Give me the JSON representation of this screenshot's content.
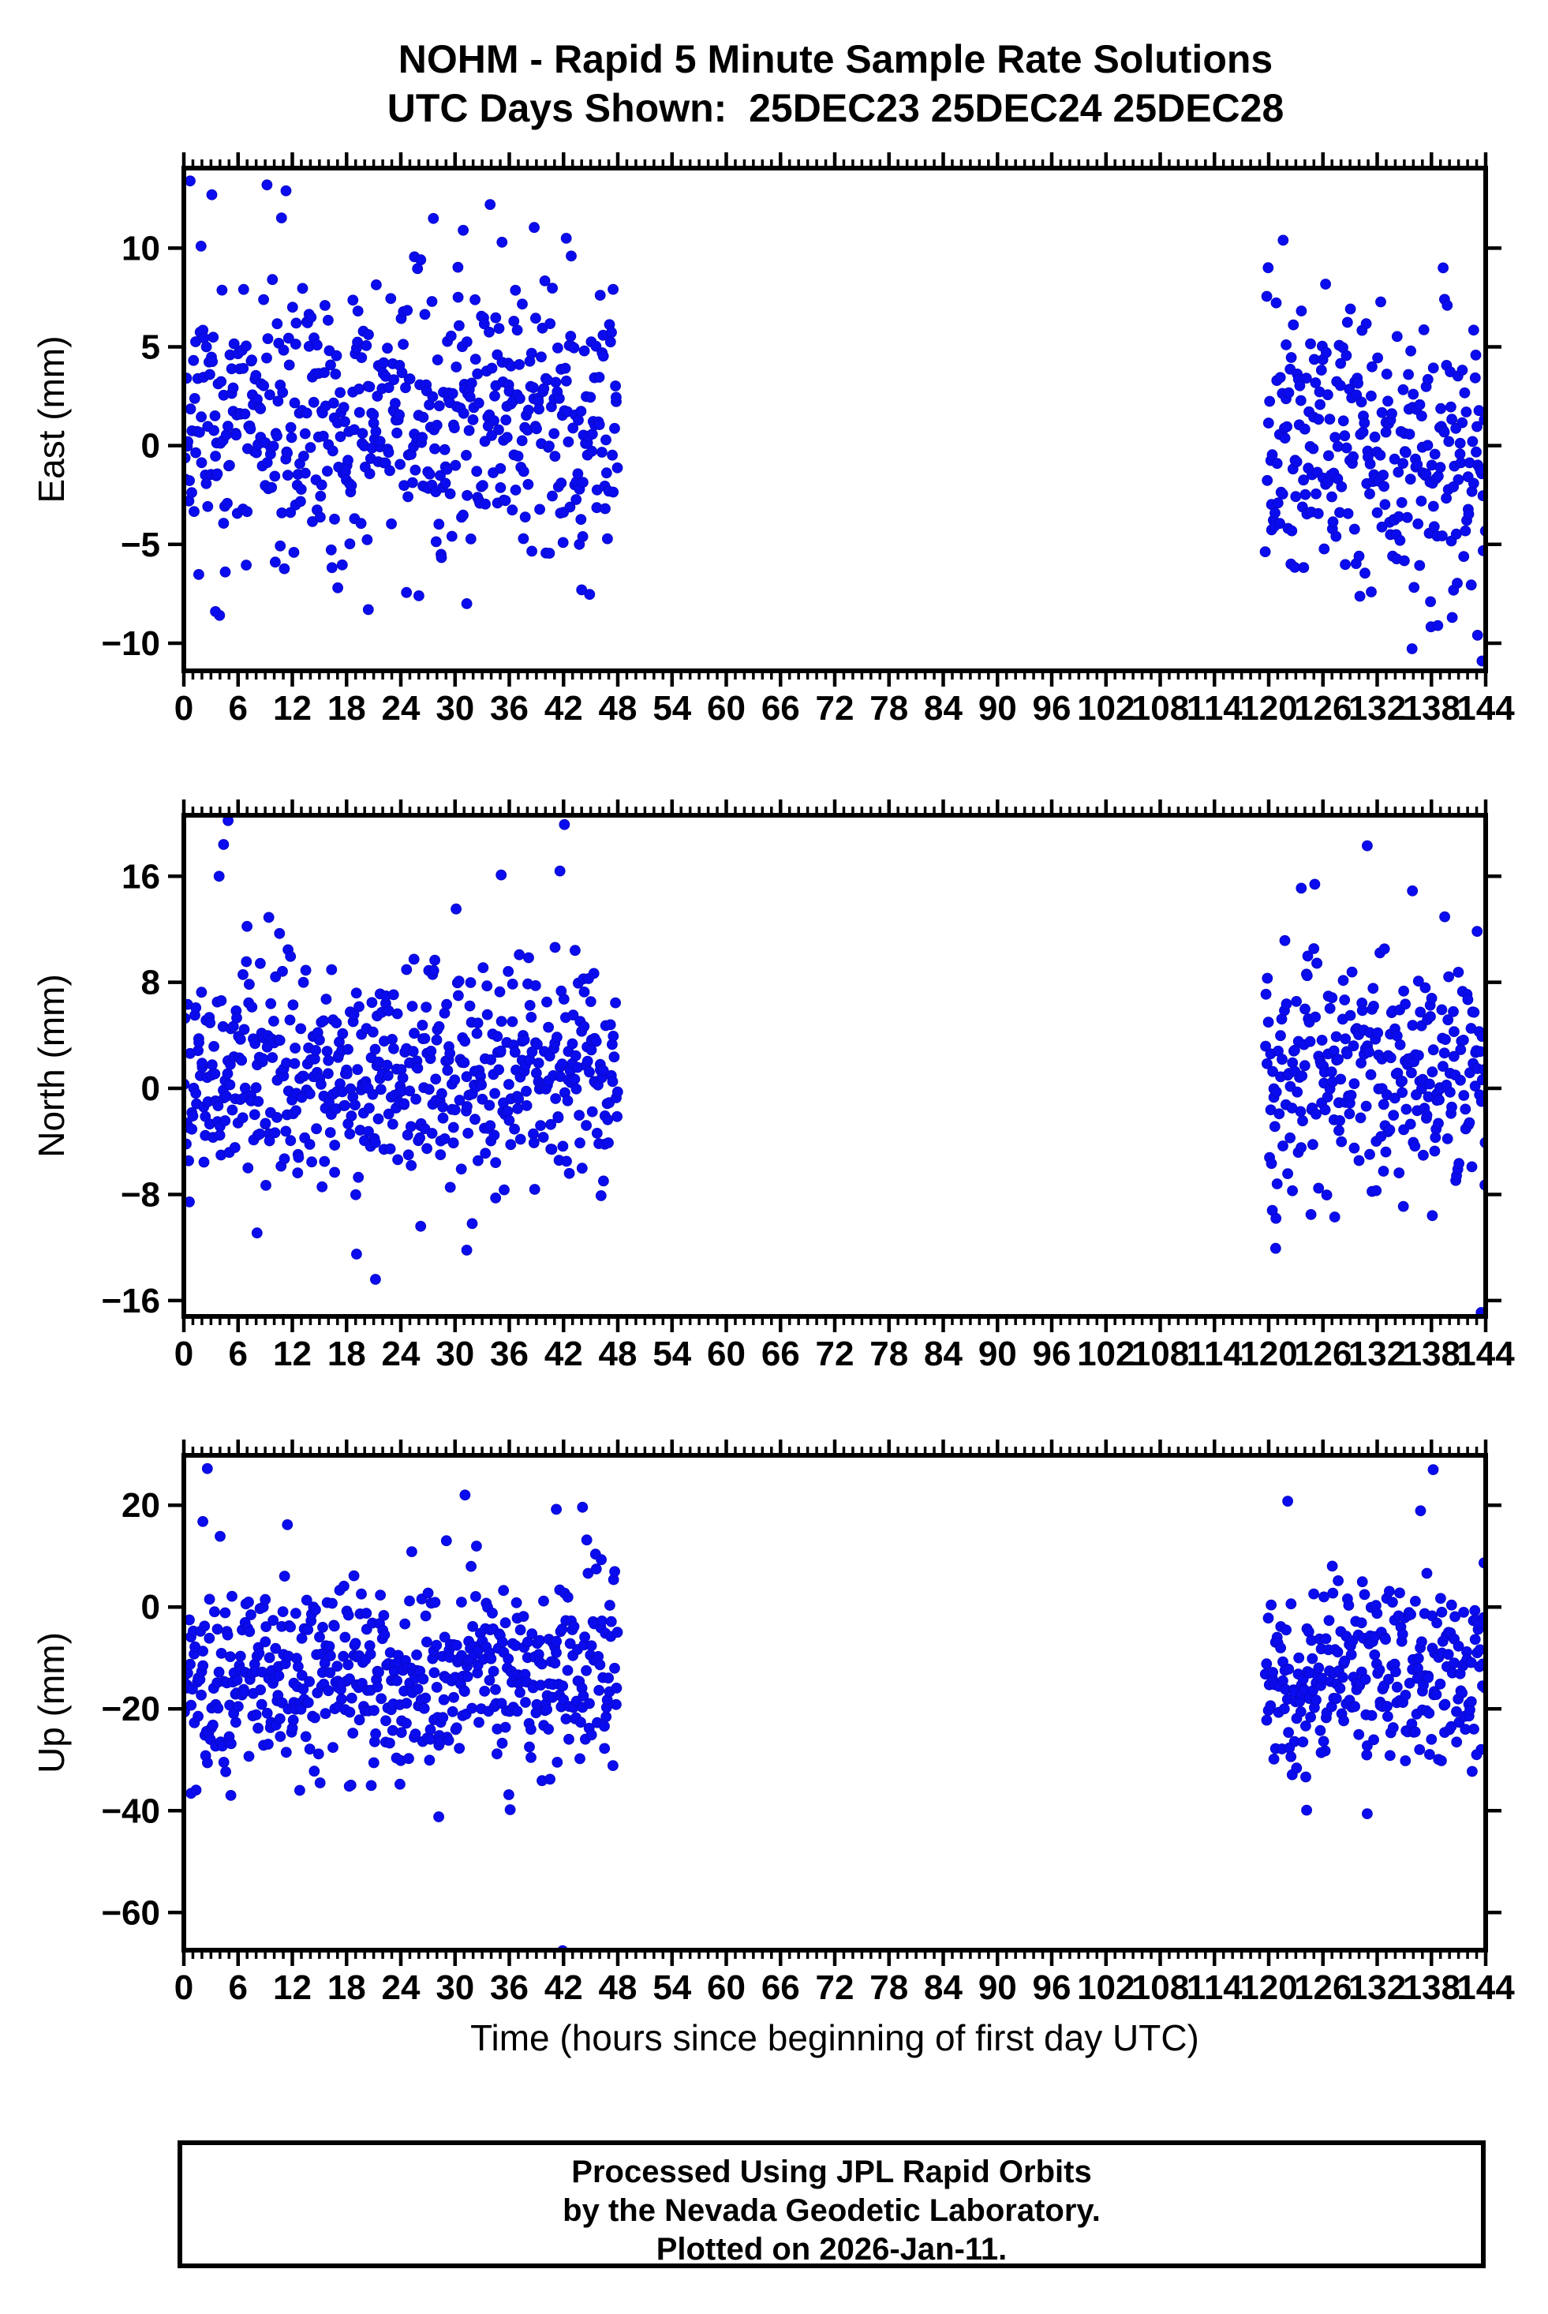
{
  "title": {
    "line1": "NOHM - Rapid 5 Minute Sample Rate Solutions",
    "line2": "UTC Days Shown:  25DEC23 25DEC24 25DEC28"
  },
  "station": "NOHM",
  "days_shown": [
    "25DEC23",
    "25DEC24",
    "25DEC28"
  ],
  "footer": {
    "line1": "Processed Using JPL Rapid Orbits",
    "line2": "by the Nevada Geodetic Laboratory.",
    "line3": "Plotted on 2026-Jan-11."
  },
  "x_axis": {
    "label": "Time (hours since beginning of first day UTC)",
    "lim": [
      0,
      144
    ],
    "ticks": [
      0,
      6,
      12,
      18,
      24,
      30,
      36,
      42,
      48,
      54,
      60,
      66,
      72,
      78,
      84,
      90,
      96,
      102,
      108,
      114,
      120,
      126,
      132,
      138,
      144
    ],
    "minor_step": 1
  },
  "style": {
    "marker_color": "#0b0bef",
    "marker_edge": "#0909c8",
    "marker_radius": 6.4,
    "axis_color": "#000000",
    "background": "#ffffff"
  },
  "chart_data": [
    {
      "type": "scatter",
      "id": "east",
      "ylabel": "East (mm)",
      "xlim": [
        0,
        144
      ],
      "ylim": [
        -11.4,
        14.05
      ],
      "yticks": [
        -10,
        -5,
        0,
        5,
        10
      ],
      "grid": false,
      "legend": "none",
      "clusters": [
        {
          "seed": 11,
          "t_start": 0,
          "t_end": 48,
          "n": 544,
          "mean": 1.2,
          "std": 3.3,
          "trend": 0,
          "clip": [
            -8.6,
            13.8
          ]
        },
        {
          "seed": 12,
          "t_start": 119.6,
          "t_end": 144,
          "n": 274,
          "mean": -0.3,
          "std": 3.3,
          "trend": -3.0,
          "clip": [
            -11.2,
            10.6
          ]
        }
      ],
      "outliers": [
        [
          0.7,
          13.4
        ],
        [
          3.1,
          12.7
        ],
        [
          9.2,
          13.2
        ],
        [
          11.3,
          12.9
        ],
        [
          1.9,
          10.1
        ],
        [
          27.6,
          11.5
        ],
        [
          30.9,
          10.9
        ],
        [
          35.2,
          10.3
        ],
        [
          42.3,
          10.5
        ],
        [
          3.5,
          -8.4
        ],
        [
          20.4,
          -8.3
        ],
        [
          31.3,
          -8.0
        ],
        [
          26.0,
          -7.6
        ],
        [
          44.0,
          -7.3
        ],
        [
          121.6,
          10.4
        ],
        [
          139.3,
          9.0
        ],
        [
          143.6,
          -10.9
        ],
        [
          143.1,
          -9.6
        ],
        [
          140.3,
          -8.7
        ],
        [
          137.9,
          -7.9
        ]
      ]
    },
    {
      "type": "scatter",
      "id": "north",
      "ylabel": "North (mm)",
      "xlim": [
        0,
        144
      ],
      "ylim": [
        -17.2,
        20.6
      ],
      "yticks": [
        -16,
        -8,
        0,
        8,
        16
      ],
      "grid": false,
      "legend": "none",
      "clusters": [
        {
          "seed": 21,
          "t_start": 0,
          "t_end": 48,
          "n": 544,
          "mean": 1.4,
          "std": 4.1,
          "trend": 0,
          "clip": [
            -11.8,
            14.6
          ]
        },
        {
          "seed": 22,
          "t_start": 119.6,
          "t_end": 144,
          "n": 272,
          "mean": 1.6,
          "std": 4.5,
          "trend": -0.8,
          "clip": [
            -12.5,
            14.8
          ]
        }
      ],
      "outliers": [
        [
          4.9,
          20.2
        ],
        [
          4.4,
          18.4
        ],
        [
          42.1,
          19.9
        ],
        [
          41.6,
          16.4
        ],
        [
          35.1,
          16.1
        ],
        [
          3.9,
          16.0
        ],
        [
          9.4,
          12.9
        ],
        [
          21.2,
          -14.4
        ],
        [
          19.1,
          -12.5
        ],
        [
          31.3,
          -12.2
        ],
        [
          8.1,
          -10.9
        ],
        [
          26.2,
          -10.4
        ],
        [
          130.9,
          18.3
        ],
        [
          123.6,
          15.1
        ],
        [
          125.1,
          15.4
        ],
        [
          135.9,
          14.9
        ],
        [
          143.5,
          -16.9
        ],
        [
          138.1,
          -9.6
        ],
        [
          120.4,
          -9.2
        ],
        [
          120.8,
          -9.8
        ],
        [
          134.9,
          -8.9
        ]
      ]
    },
    {
      "type": "scatter",
      "id": "up",
      "ylabel": "Up (mm)",
      "xlim": [
        0,
        144
      ],
      "ylim": [
        -67.4,
        29.8
      ],
      "yticks": [
        -60,
        -40,
        -20,
        0,
        20
      ],
      "grid": false,
      "legend": "none",
      "clusters": [
        {
          "seed": 31,
          "t_start": 0,
          "t_end": 48,
          "n": 544,
          "mean": -13.5,
          "std": 9.5,
          "trend": 0,
          "clip": [
            -38,
            17.5
          ]
        },
        {
          "seed": 32,
          "t_start": 119.6,
          "t_end": 144,
          "n": 272,
          "mean": -13.0,
          "std": 8.8,
          "trend": 0,
          "clip": [
            -36,
            17.5
          ]
        }
      ],
      "outliers": [
        [
          2.6,
          27.2
        ],
        [
          31.1,
          22.0
        ],
        [
          2.1,
          16.8
        ],
        [
          41.2,
          19.2
        ],
        [
          44.1,
          19.6
        ],
        [
          41.9,
          -67.5
        ],
        [
          28.2,
          -41.2
        ],
        [
          36.1,
          -39.8
        ],
        [
          5.2,
          -37.0
        ],
        [
          0.8,
          -36.6
        ],
        [
          18.3,
          -35.2
        ],
        [
          23.9,
          -34.8
        ],
        [
          138.2,
          27.0
        ],
        [
          122.1,
          20.8
        ],
        [
          136.8,
          18.9
        ],
        [
          130.9,
          -40.6
        ],
        [
          124.2,
          -39.9
        ],
        [
          139.1,
          -30.2
        ],
        [
          143.0,
          -29.0
        ],
        [
          125.8,
          -28.6
        ]
      ]
    }
  ]
}
